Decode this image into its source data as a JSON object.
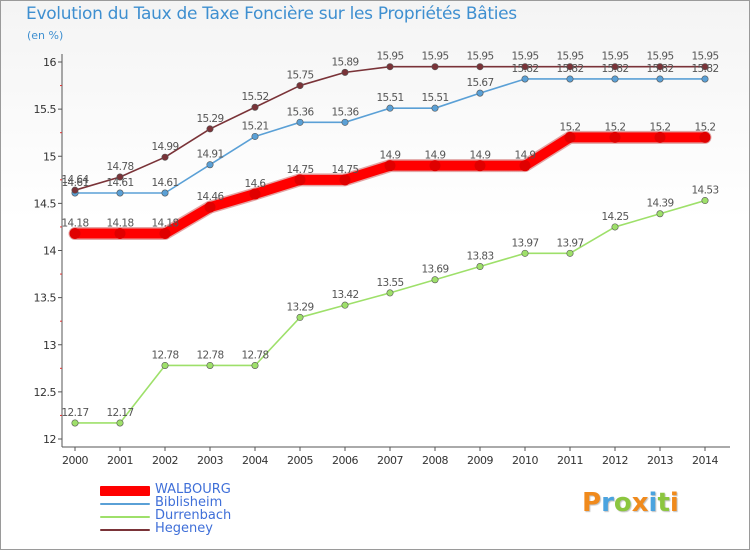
{
  "header": {
    "title": "Evolution du Taux de Taxe Foncière sur les Propriétés Bâties",
    "unit": "(en %)"
  },
  "brand": {
    "letters": [
      "P",
      "r",
      "o",
      "x",
      "i",
      "t",
      "i"
    ],
    "colors": [
      "#f08a1c",
      "#4aa3df",
      "#8cc63f",
      "#f08a1c",
      "#4aa3df",
      "#8cc63f",
      "#f08a1c"
    ]
  },
  "chart_data": {
    "type": "line",
    "title": "Evolution du Taux de Taxe Foncière sur les Propriétés Bâties",
    "ylabel": "(en %)",
    "xlabel": "",
    "x": [
      "2000",
      "2001",
      "2002",
      "2003",
      "2004",
      "2005",
      "2006",
      "2007",
      "2008",
      "2009",
      "2010",
      "2011",
      "2012",
      "2013",
      "2014"
    ],
    "ylim": [
      12,
      16
    ],
    "yticks": [
      12,
      12.5,
      13,
      13.5,
      14,
      14.5,
      15,
      15.5,
      16
    ],
    "grid": false,
    "legend_position": "bottom-left",
    "series": [
      {
        "name": "WALBOURG",
        "color": "#ff0000",
        "emphasis": true,
        "values": [
          14.18,
          14.18,
          14.18,
          14.46,
          14.6,
          14.75,
          14.75,
          14.9,
          14.9,
          14.9,
          14.9,
          15.2,
          15.2,
          15.2,
          15.2
        ],
        "labels": [
          "14.18",
          "14.18",
          "14.18",
          "14.46",
          "14.6",
          "14.75",
          "14.75",
          "14.9",
          "14.9",
          "14.9",
          "14.9",
          "15.2",
          "15.2",
          "15.2",
          "15.2"
        ]
      },
      {
        "name": "Biblisheim",
        "color": "#5aa0d6",
        "emphasis": false,
        "values": [
          14.61,
          14.61,
          14.61,
          14.91,
          15.21,
          15.36,
          15.36,
          15.51,
          15.51,
          15.67,
          15.82,
          15.82,
          15.82,
          15.82,
          15.82
        ],
        "labels": [
          "14.61",
          "14.61",
          "14.61",
          "14.91",
          "15.21",
          "15.36",
          "15.36",
          "15.51",
          "15.51",
          "15.67",
          "15.82",
          "15.82",
          "15.82",
          "15.82",
          "15.82"
        ]
      },
      {
        "name": "Durrenbach",
        "color": "#9ee06a",
        "emphasis": false,
        "values": [
          12.17,
          12.17,
          12.78,
          12.78,
          12.78,
          13.29,
          13.42,
          13.55,
          13.69,
          13.83,
          13.97,
          13.97,
          14.25,
          14.39,
          14.53
        ],
        "labels": [
          "12.17",
          "12.17",
          "12.78",
          "12.78",
          "12.78",
          "13.29",
          "13.42",
          "13.55",
          "13.69",
          "13.83",
          "13.97",
          "13.97",
          "14.25",
          "14.39",
          "14.53"
        ]
      },
      {
        "name": "Hegeney",
        "color": "#7a3338",
        "emphasis": false,
        "values": [
          14.64,
          14.78,
          14.99,
          15.29,
          15.52,
          15.75,
          15.89,
          15.95,
          15.95,
          15.95,
          15.95,
          15.95,
          15.95,
          15.95,
          15.95
        ],
        "labels": [
          "14.64",
          "14.78",
          "14.99",
          "15.29",
          "15.52",
          "15.75",
          "15.89",
          "15.95",
          "15.95",
          "15.95",
          "15.95",
          "15.95",
          "15.95",
          "15.95",
          "15.95"
        ]
      }
    ]
  }
}
